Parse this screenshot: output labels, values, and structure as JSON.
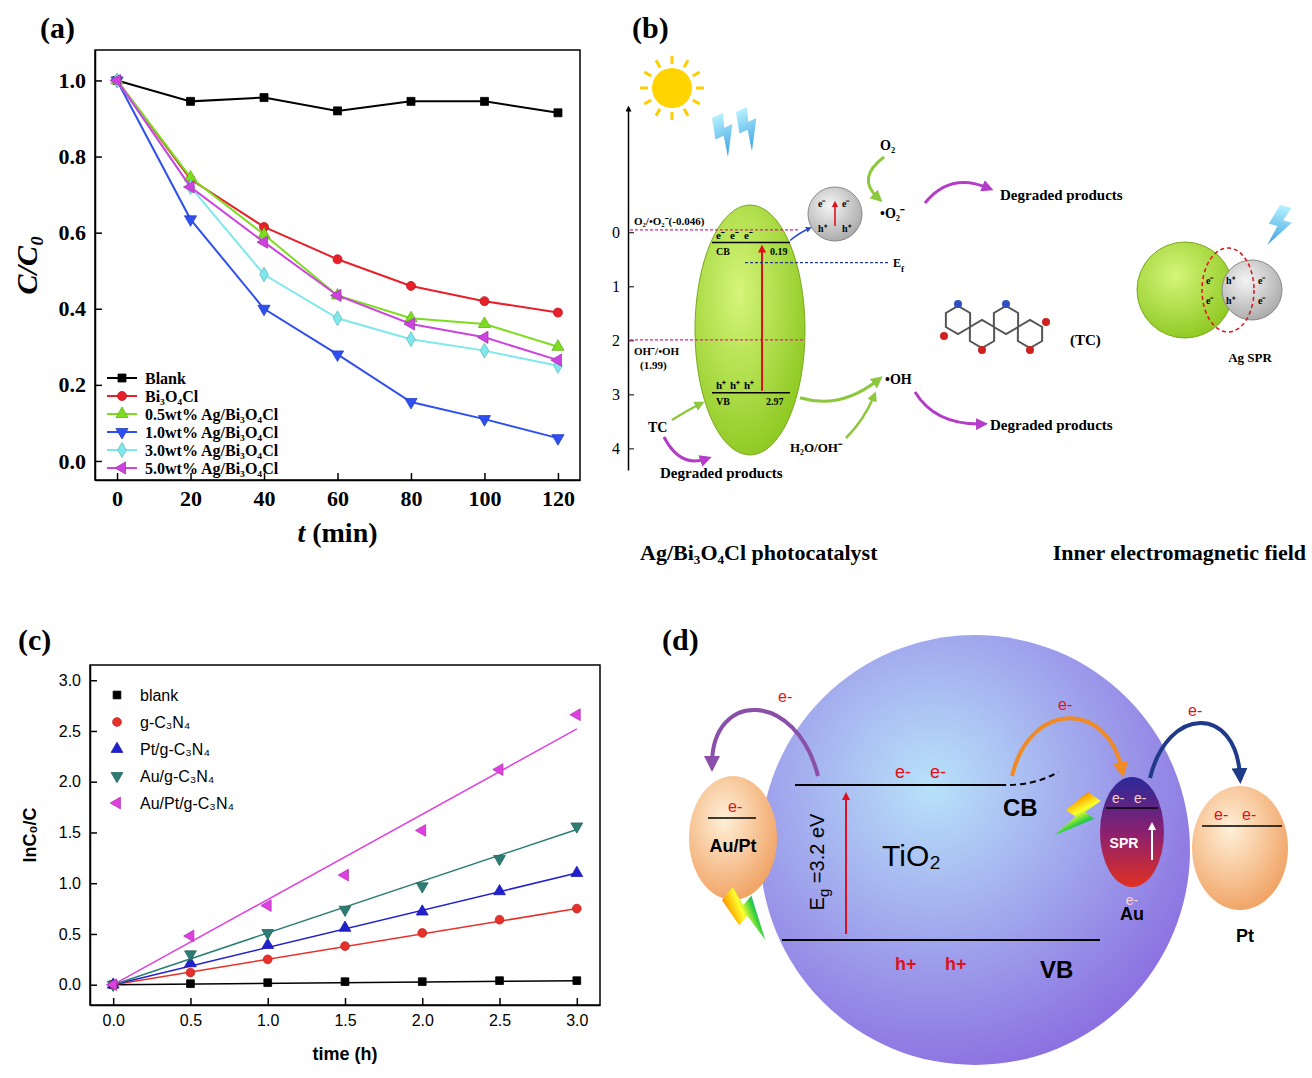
{
  "chart_data": [
    {
      "panel": "(a)",
      "type": "line",
      "x_label": "t (min)",
      "y_label": "C/C₀",
      "x": [
        0,
        20,
        40,
        60,
        80,
        100,
        120
      ],
      "xlim": [
        -6,
        126
      ],
      "xticks": [
        0,
        20,
        40,
        60,
        80,
        100,
        120
      ],
      "ylim": [
        -0.05,
        1.08
      ],
      "yticks": [
        {
          "value": 0,
          "label": "0.0"
        },
        0.2,
        0.4,
        0.6,
        0.8,
        {
          "value": 1,
          "label": "1.0"
        }
      ],
      "grid": false,
      "legend": "lower-left",
      "series": [
        {
          "name": "Blank",
          "color": "#000000",
          "marker": "square",
          "line_style": "solid",
          "values": [
            1.0,
            0.945,
            0.955,
            0.92,
            0.945,
            0.945,
            0.915
          ]
        },
        {
          "name": "Bi₃O₄Cl",
          "color": "#e8202a",
          "marker": "circle",
          "line_style": "solid",
          "values": [
            1.0,
            0.74,
            0.615,
            0.53,
            0.46,
            0.42,
            0.39
          ]
        },
        {
          "name": "0.5wt% Ag/Bi₃O₄Cl",
          "color": "#7ddc1f",
          "marker": "triangle-up",
          "line_style": "solid",
          "values": [
            1.0,
            0.745,
            0.595,
            0.435,
            0.375,
            0.36,
            0.3
          ]
        },
        {
          "name": "1.0wt% Ag/Bi₃O₄Cl",
          "color": "#2f4ff0",
          "marker": "triangle-down",
          "line_style": "solid",
          "values": [
            1.0,
            0.635,
            0.4,
            0.28,
            0.155,
            0.11,
            0.06
          ]
        },
        {
          "name": "3.0wt% Ag/Bi₃O₄Cl",
          "color": "#7fe8ec",
          "marker": "diamond",
          "line_style": "solid",
          "values": [
            1.0,
            0.72,
            0.49,
            0.375,
            0.32,
            0.29,
            0.25
          ]
        },
        {
          "name": "5.0wt% Ag/Bi₃O₄Cl",
          "color": "#cc44dd",
          "marker": "triangle-left",
          "line_style": "solid",
          "values": [
            1.0,
            0.72,
            0.575,
            0.435,
            0.36,
            0.325,
            0.265
          ]
        }
      ]
    },
    {
      "panel": "(c)",
      "type": "scatter",
      "x_label": "time (h)",
      "y_label": "lnC₀/C",
      "x": [
        0,
        0.5,
        1,
        1.5,
        2,
        2.5,
        3
      ],
      "xlim": [
        -0.15,
        3.15
      ],
      "xticks": [
        {
          "value": 0,
          "label": "0.0"
        },
        0.5,
        {
          "value": 1,
          "label": "1.0"
        },
        1.5,
        {
          "value": 2,
          "label": "2.0"
        },
        2.5,
        {
          "value": 3,
          "label": "3.0"
        }
      ],
      "ylim": [
        -0.2,
        3.15
      ],
      "yticks": [
        {
          "value": 0,
          "label": "0.0"
        },
        0.5,
        {
          "value": 1,
          "label": "1.0"
        },
        1.5,
        {
          "value": 2,
          "label": "2.0"
        },
        2.5,
        {
          "value": 3,
          "label": "3.0"
        }
      ],
      "grid": false,
      "legend": "upper-left",
      "fit_x": [
        0,
        3
      ],
      "series": [
        {
          "name": "blank",
          "color": "#000000",
          "marker": "square",
          "line_style": "solid",
          "values": [
            0,
            0.01,
            0.02,
            0.03,
            0.03,
            0.04,
            0.04
          ],
          "fit": [
            0,
            0.04
          ]
        },
        {
          "name": "g-C₃N₄",
          "color": "#e8302a",
          "marker": "circle",
          "line_style": "solid",
          "values": [
            0,
            0.12,
            0.25,
            0.38,
            0.51,
            0.64,
            0.75
          ],
          "fit": [
            0,
            0.75
          ]
        },
        {
          "name": "Pt/g-C₃N₄",
          "color": "#2020d0",
          "marker": "triangle-up",
          "line_style": "solid",
          "values": [
            0,
            0.21,
            0.39,
            0.56,
            0.72,
            0.92,
            1.1
          ],
          "fit": [
            0,
            1.1
          ]
        },
        {
          "name": "Au/g-C₃N₄",
          "color": "#2d7d74",
          "marker": "triangle-down",
          "line_style": "solid",
          "values": [
            0,
            0.3,
            0.51,
            0.74,
            0.97,
            1.24,
            1.56
          ],
          "fit": [
            0,
            1.53
          ]
        },
        {
          "name": "Au/Pt/g-C₃N₄",
          "color": "#e040e0",
          "marker": "triangle-left",
          "line_style": "solid",
          "values": [
            0,
            0.48,
            0.78,
            1.08,
            1.52,
            2.12,
            2.66
          ],
          "fit": [
            0,
            2.52
          ]
        }
      ]
    }
  ],
  "diagram_b": {
    "panel": "(b)",
    "energy_lim": [
      -2.3,
      4.4
    ],
    "energy_ticks": [
      0,
      1,
      2,
      3,
      4
    ],
    "levels": {
      "o2": {
        "label": "O₂/•O₂⁻(-0.046)",
        "value": -0.046
      },
      "cb": {
        "label": "CB",
        "value": 0.19,
        "value_label": "0.19"
      },
      "fermi": {
        "symbol": "E",
        "subscript": "f"
      },
      "oh": {
        "label": "OH⁻/•OH",
        "value": 1.99,
        "value_label": "(1.99)"
      },
      "vb": {
        "label": "VB",
        "value": 2.97,
        "value_label": "2.97"
      }
    },
    "electron": "e⁻",
    "hole": "h⁺",
    "species": {
      "o2": "O₂",
      "superoxide": "•O₂⁻",
      "hydroxyl": "•OH",
      "water": "H₂O/OH⁻",
      "tc": "TC",
      "tc_molecule": "(TC)"
    },
    "product": "Degraded products",
    "inset_label": "Ag SPR",
    "caption_left": "Ag/Bi₃O₄Cl photocatalyst",
    "caption_right": "Inner electromagnetic field"
  },
  "diagram_d": {
    "panel": "(d)",
    "semiconductor": "TiO₂",
    "band_gap": {
      "symbol": "E",
      "subscript": "g",
      "text": " =3.2 eV"
    },
    "cb": "CB",
    "vb": "VB",
    "electron": "e-",
    "hole": "h+",
    "spr": "SPR",
    "left_metal": "Au/Pt",
    "right_metals": [
      "Au",
      "Pt"
    ]
  }
}
